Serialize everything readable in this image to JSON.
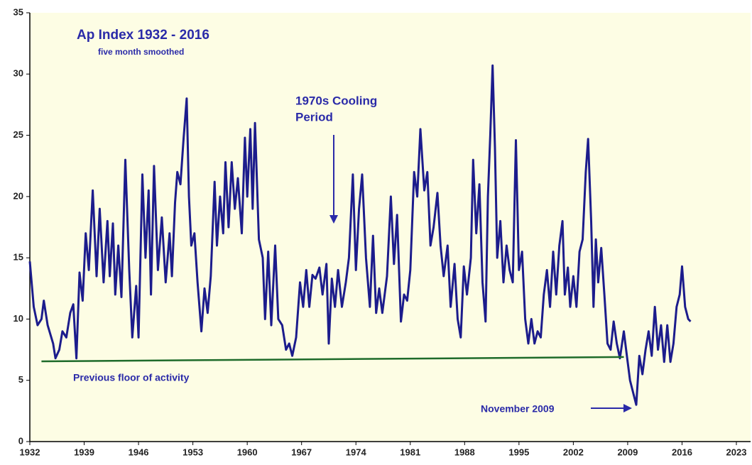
{
  "chart_data": {
    "type": "line",
    "title": "Ap Index 1932 - 2016",
    "subtitle": "five month smoothed",
    "xlim": [
      1932,
      2023
    ],
    "xticks": [
      1932,
      1939,
      1946,
      1953,
      1960,
      1967,
      1974,
      1981,
      1988,
      1995,
      2002,
      2009,
      2016,
      2023
    ],
    "ylim": [
      0,
      35
    ],
    "yticks": [
      0,
      5,
      10,
      15,
      20,
      25,
      30,
      35
    ],
    "series": [
      {
        "name": "Ap Index",
        "color": "#1c1c8c",
        "x": [
          1932.0,
          1932.5,
          1933.0,
          1933.5,
          1933.8,
          1934.3,
          1935,
          1935.3,
          1935.8,
          1936.2,
          1936.7,
          1937.2,
          1937.6,
          1938,
          1938.4,
          1938.8,
          1939.2,
          1939.6,
          1940.1,
          1940.6,
          1941,
          1941.5,
          1942,
          1942.3,
          1942.7,
          1943,
          1943.4,
          1943.8,
          1944.3,
          1944.8,
          1945.2,
          1945.7,
          1946,
          1946.5,
          1946.9,
          1947.3,
          1947.6,
          1948,
          1948.5,
          1949,
          1949.5,
          1950,
          1950.3,
          1950.7,
          1951,
          1951.4,
          1951.8,
          1952.2,
          1952.5,
          1952.8,
          1953.2,
          1953.6,
          1954.1,
          1954.5,
          1954.9,
          1955.3,
          1955.8,
          1956.1,
          1956.5,
          1956.9,
          1957.2,
          1957.6,
          1958,
          1958.4,
          1958.8,
          1959.3,
          1959.7,
          1960,
          1960.4,
          1960.7,
          1961,
          1961.5,
          1962,
          1962.3,
          1962.7,
          1963.1,
          1963.6,
          1964,
          1964.5,
          1965,
          1965.4,
          1965.8,
          1966.3,
          1966.8,
          1967.2,
          1967.6,
          1968,
          1968.4,
          1968.8,
          1969.3,
          1969.7,
          1970.2,
          1970.5,
          1970.9,
          1971.3,
          1971.7,
          1972.2,
          1972.7,
          1973.1,
          1973.6,
          1974,
          1974.4,
          1974.8,
          1975.3,
          1975.8,
          1976.2,
          1976.6,
          1977,
          1977.4,
          1978,
          1978.5,
          1978.9,
          1979.3,
          1979.8,
          1980.2,
          1980.6,
          1981,
          1981.5,
          1981.9,
          1982.3,
          1982.8,
          1983.2,
          1983.6,
          1984,
          1984.5,
          1984.9,
          1985.3,
          1985.8,
          1986.2,
          1986.7,
          1987.1,
          1987.5,
          1987.9,
          1988.3,
          1988.8,
          1989.1,
          1989.5,
          1989.9,
          1990.3,
          1990.7,
          1991.0,
          1991.3,
          1991.6,
          1991.9,
          1992.2,
          1992.6,
          1993,
          1993.4,
          1993.8,
          1994.2,
          1994.6,
          1995,
          1995.4,
          1995.8,
          1996.2,
          1996.6,
          1997,
          1997.4,
          1997.8,
          1998.2,
          1998.6,
          1999,
          1999.4,
          1999.8,
          2000.2,
          2000.6,
          2000.9,
          2001.3,
          2001.6,
          2002,
          2002.4,
          2002.8,
          2003.2,
          2003.6,
          2003.9,
          2004.3,
          2004.6,
          2004.9,
          2005.2,
          2005.6,
          2006,
          2006.4,
          2006.8,
          2007.2,
          2007.6,
          2008,
          2008.5,
          2008.9,
          2009.3,
          2009.7,
          2010.1,
          2010.5,
          2010.9,
          2011.3,
          2011.7,
          2012.1,
          2012.5,
          2012.9,
          2013.3,
          2013.7,
          2014.1,
          2014.5,
          2014.9,
          2015.3,
          2015.7,
          2016.0,
          2016.4,
          2016.8,
          2017.1
        ],
        "values": [
          14.7,
          11,
          9.5,
          10,
          11.5,
          9.5,
          8,
          6.8,
          7.5,
          9,
          8.5,
          10.5,
          11.2,
          6.8,
          13.8,
          11.5,
          17,
          14,
          20.5,
          13.5,
          19,
          13,
          18,
          13.5,
          17.8,
          12,
          16,
          11.8,
          23,
          14,
          8.5,
          12.7,
          8.5,
          21.8,
          15,
          20.5,
          12,
          22.5,
          14,
          18.3,
          13,
          17,
          13.5,
          19.5,
          22,
          21,
          24.7,
          28,
          20,
          16,
          17,
          13,
          9,
          12.5,
          10.5,
          13.5,
          21.2,
          16,
          20,
          17,
          22.8,
          17.5,
          22.8,
          19,
          21.5,
          17,
          24.8,
          20,
          25.5,
          19,
          26,
          16.5,
          15,
          10,
          15.5,
          9.5,
          16,
          10,
          9.5,
          7.5,
          8,
          7,
          8.5,
          13,
          11,
          14,
          11,
          13.6,
          13.3,
          14.2,
          12,
          14.5,
          8,
          13.3,
          11,
          14,
          11,
          13,
          15,
          21.8,
          14,
          19,
          21.8,
          15,
          11,
          16.8,
          10.5,
          12.5,
          10.5,
          13.5,
          20,
          14.5,
          18.5,
          9.8,
          12,
          11.5,
          14,
          22,
          20,
          25.5,
          20.5,
          22,
          16,
          17.5,
          20.3,
          16,
          13.5,
          16,
          11,
          14.5,
          10,
          8.5,
          14.3,
          12,
          15,
          23,
          17,
          21,
          13,
          9.8,
          20,
          25,
          30.7,
          24,
          15,
          18,
          13,
          16,
          14,
          13,
          24.6,
          14,
          15.5,
          10,
          8,
          10,
          8,
          9,
          8.5,
          12,
          14,
          11,
          15.5,
          12,
          16,
          18,
          12,
          14.2,
          11,
          13.5,
          11,
          15.5,
          16.5,
          22,
          24.7,
          18,
          11,
          16.5,
          13,
          15.8,
          12,
          8,
          7.5,
          9.8,
          8,
          6.8,
          9,
          7,
          5,
          4,
          3,
          7,
          5.5,
          7.5,
          9,
          7,
          11,
          7.5,
          9.5,
          6.5,
          9.5,
          6.5,
          8,
          11,
          12,
          14.3,
          11,
          10,
          9.8
        ]
      }
    ],
    "floor": {
      "label": "Previous floor of activity",
      "color": "#1e6b2a",
      "x": [
        1933.5,
        2008.5
      ],
      "values": [
        6.55,
        6.9
      ]
    },
    "annotations": [
      {
        "lines": [
          "1970s Cooling",
          "Period"
        ]
      },
      {
        "lines": [
          "November 2009"
        ]
      }
    ]
  }
}
